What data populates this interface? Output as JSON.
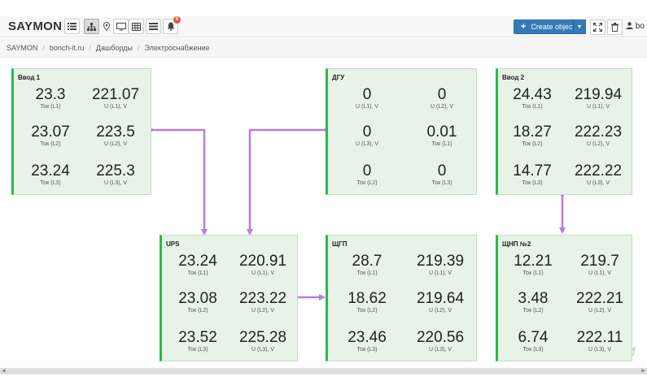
{
  "app": {
    "brand": "SAYMON"
  },
  "toolbar": {
    "icons": [
      "list-icon",
      "hierarchy-icon",
      "map-marker-icon",
      "monitor-icon",
      "grid-icon",
      "list-view-icon",
      "bell-icon"
    ],
    "notifications_count": "0",
    "create_label": "Create object",
    "user_label": "bo"
  },
  "breadcrumb": [
    "SAYMON",
    "bonch-it.ru",
    "Дашборды",
    "Электроснабжение"
  ],
  "cards": [
    {
      "title": "Ввод 1",
      "metrics": [
        {
          "value": "23.3",
          "label": "Ток (L1)"
        },
        {
          "value": "221.07",
          "label": "U (L1), V"
        },
        {
          "value": "23.07",
          "label": "Ток (L2)"
        },
        {
          "value": "223.5",
          "label": "U (L2), V"
        },
        {
          "value": "23.24",
          "label": "Ток (L3)"
        },
        {
          "value": "225.3",
          "label": "U (L3), V"
        }
      ]
    },
    {
      "title": "ДГУ",
      "metrics": [
        {
          "value": "0",
          "label": "U (L1), V"
        },
        {
          "value": "0",
          "label": "U (L2), V"
        },
        {
          "value": "0",
          "label": "U (L3), V"
        },
        {
          "value": "0.01",
          "label": "Ток (L1)"
        },
        {
          "value": "0",
          "label": "Ток (L2)"
        },
        {
          "value": "0",
          "label": "Ток (L3)"
        }
      ]
    },
    {
      "title": "Ввод 2",
      "metrics": [
        {
          "value": "24.43",
          "label": "Ток (L1)"
        },
        {
          "value": "219.94",
          "label": "U (L1), V"
        },
        {
          "value": "18.27",
          "label": "Ток (L2)"
        },
        {
          "value": "222.23",
          "label": "U (L2), V"
        },
        {
          "value": "14.77",
          "label": "Ток (L3)"
        },
        {
          "value": "222.22",
          "label": "U (L3), V"
        }
      ]
    },
    {
      "title": "UPS",
      "metrics": [
        {
          "value": "23.24",
          "label": "Ток (L1)"
        },
        {
          "value": "220.91",
          "label": "U (L1), V"
        },
        {
          "value": "23.08",
          "label": "Ток (L2)"
        },
        {
          "value": "223.22",
          "label": "U (L2), V"
        },
        {
          "value": "23.52",
          "label": "Ток (L3)"
        },
        {
          "value": "225.28",
          "label": "U (L3), V"
        }
      ]
    },
    {
      "title": "ЩГП",
      "metrics": [
        {
          "value": "28.7",
          "label": "Ток (L1)"
        },
        {
          "value": "219.39",
          "label": "U (L1), V"
        },
        {
          "value": "18.62",
          "label": "Ток (L2)"
        },
        {
          "value": "219.64",
          "label": "U (L2), V"
        },
        {
          "value": "23.46",
          "label": "Ток (L3)"
        },
        {
          "value": "220.56",
          "label": "U (L3), V"
        }
      ]
    },
    {
      "title": "ЩНП №2",
      "metrics": [
        {
          "value": "12.21",
          "label": "Ток (L1)"
        },
        {
          "value": "219.7",
          "label": "U (L1), V"
        },
        {
          "value": "3.48",
          "label": "Ток (L2)"
        },
        {
          "value": "222.21",
          "label": "U (L2), V"
        },
        {
          "value": "6.74",
          "label": "Ток (L3)"
        },
        {
          "value": "222.11",
          "label": "U (L3), V"
        }
      ]
    }
  ],
  "colors": {
    "card_bg": "#e6f3e6",
    "card_accent": "#2db84d",
    "link": "#b77ee0",
    "primary": "#337ab7"
  }
}
